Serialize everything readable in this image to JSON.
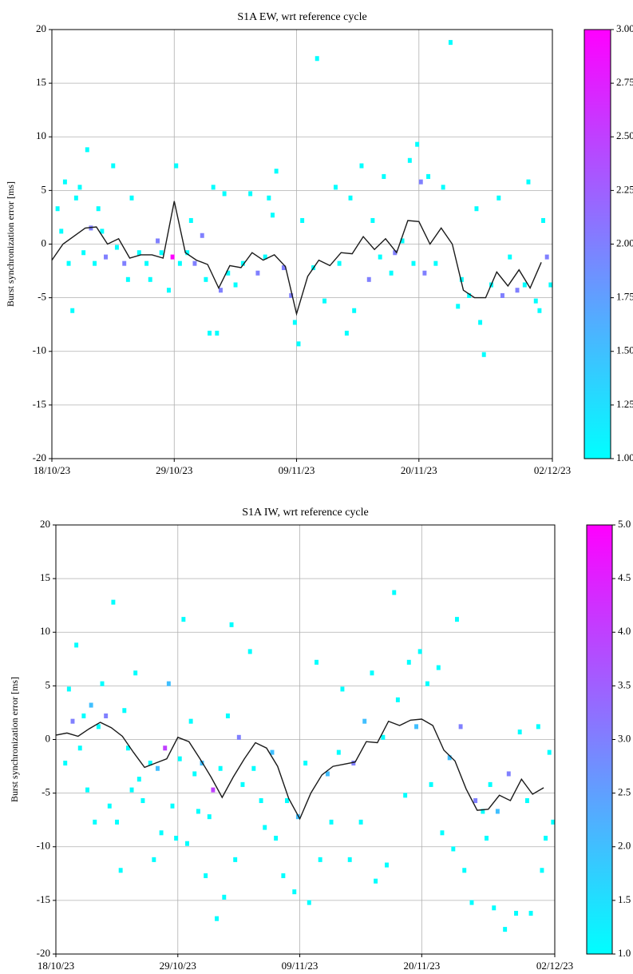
{
  "chart_data": [
    {
      "type": "histogram2d",
      "title": "S1A EW, wrt reference cycle",
      "ylabel": "Burst synchronization error [ms]",
      "xlim": [
        "2023-10-18",
        "2023-12-02"
      ],
      "xticks": [
        {
          "value": "2023-10-18",
          "label": "18/10/23"
        },
        {
          "value": "2023-10-29",
          "label": "29/10/23"
        },
        {
          "value": "2023-11-09",
          "label": "09/11/23"
        },
        {
          "value": "2023-11-20",
          "label": "20/11/23"
        },
        {
          "value": "2023-12-02",
          "label": "02/12/23"
        }
      ],
      "ylim": [
        -20,
        20
      ],
      "yticks": [
        -20,
        -15,
        -10,
        -5,
        0,
        5,
        10,
        15,
        20
      ],
      "grid": true,
      "colormap": [
        "#00ffff",
        "#ff00ff"
      ],
      "clim": [
        1,
        3
      ],
      "cticks": [
        {
          "value": 1,
          "label": "1.00"
        },
        {
          "value": 1.25,
          "label": "1.25"
        },
        {
          "value": 1.5,
          "label": "1.50"
        },
        {
          "value": 1.75,
          "label": "1.75"
        },
        {
          "value": 2,
          "label": "2.00"
        },
        {
          "value": 2.25,
          "label": "2.25"
        },
        {
          "value": 2.5,
          "label": "2.50"
        },
        {
          "value": 2.75,
          "label": "2.75"
        },
        {
          "value": 3,
          "label": "3.00"
        }
      ],
      "cells": {
        "x": [
          "2023-10-18T08",
          "2023-10-18T16",
          "2023-10-19T00",
          "2023-10-19T08",
          "2023-10-19T16",
          "2023-10-20T00",
          "2023-10-20T08",
          "2023-10-20T16",
          "2023-10-21T00",
          "2023-10-21T08",
          "2023-10-21T16",
          "2023-10-22T00",
          "2023-10-22T08",
          "2023-10-22T16",
          "2023-10-23T08",
          "2023-10-23T16",
          "2023-10-24T08",
          "2023-10-24T16",
          "2023-10-25T00",
          "2023-10-25T16",
          "2023-10-26T08",
          "2023-10-26T16",
          "2023-10-27T08",
          "2023-10-27T16",
          "2023-10-28T08",
          "2023-10-28T16",
          "2023-10-29T00",
          "2023-10-29T08",
          "2023-10-30T00",
          "2023-10-30T08",
          "2023-10-30T16",
          "2023-10-31T08",
          "2023-10-31T16",
          "2023-11-01T00",
          "2023-11-01T08",
          "2023-11-01T16",
          "2023-11-02T00",
          "2023-11-02T08",
          "2023-11-02T16",
          "2023-11-03T08",
          "2023-11-04T00",
          "2023-11-04T16",
          "2023-11-05T08",
          "2023-11-06T00",
          "2023-11-06T08",
          "2023-11-06T16",
          "2023-11-07T00",
          "2023-11-07T16",
          "2023-11-08T08",
          "2023-11-08T16",
          "2023-11-09T00",
          "2023-11-09T08",
          "2023-11-10T08",
          "2023-11-10T16",
          "2023-11-11T08",
          "2023-11-12T08",
          "2023-11-12T16",
          "2023-11-13T08",
          "2023-11-13T16",
          "2023-11-14T00",
          "2023-11-14T16",
          "2023-11-15T08",
          "2023-11-15T16",
          "2023-11-16T08",
          "2023-11-16T16",
          "2023-11-17T08",
          "2023-11-17T16",
          "2023-11-18T08",
          "2023-11-19T00",
          "2023-11-19T08",
          "2023-11-19T16",
          "2023-11-20T00",
          "2023-11-20T08",
          "2023-11-20T16",
          "2023-11-21T08",
          "2023-11-22T00",
          "2023-11-22T16",
          "2023-11-23T08",
          "2023-11-23T16",
          "2023-11-24T08",
          "2023-11-25T00",
          "2023-11-25T08",
          "2023-11-25T16",
          "2023-11-26T08",
          "2023-11-27T00",
          "2023-11-27T08",
          "2023-11-28T00",
          "2023-11-28T16",
          "2023-11-29T08",
          "2023-11-29T16",
          "2023-11-30T08",
          "2023-11-30T16",
          "2023-12-01T00",
          "2023-12-01T08",
          "2023-12-01T16"
        ],
        "y": [
          3.3,
          1.2,
          5.8,
          -1.8,
          -6.2,
          4.3,
          5.3,
          -0.8,
          8.8,
          1.5,
          -1.8,
          3.3,
          1.2,
          -1.2,
          7.3,
          -0.3,
          -1.8,
          -3.3,
          4.3,
          -0.8,
          -1.8,
          -3.3,
          0.3,
          -0.8,
          -4.3,
          -1.2,
          7.3,
          -1.8,
          -0.8,
          2.2,
          -1.8,
          0.8,
          -3.3,
          -8.3,
          5.3,
          -8.3,
          -4.3,
          4.7,
          -2.7,
          -3.8,
          -1.8,
          4.7,
          -2.7,
          -1.2,
          4.3,
          2.7,
          6.8,
          -2.2,
          -4.8,
          -7.3,
          -9.3,
          2.2,
          -2.2,
          17.3,
          -5.3,
          5.3,
          -1.8,
          -8.3,
          4.3,
          -6.2,
          7.3,
          -3.3,
          2.2,
          -1.2,
          6.3,
          -2.7,
          -0.8,
          0.3,
          7.8,
          -1.8,
          9.3,
          5.8,
          -2.7,
          6.3,
          -1.8,
          5.3,
          18.8,
          -5.8,
          -3.3,
          -4.8,
          3.3,
          -7.3,
          -10.3,
          -3.8,
          4.3,
          -4.8,
          -1.2,
          -4.3,
          -3.8,
          5.8,
          -5.3,
          -6.2,
          2.2,
          -1.2,
          -3.8
        ],
        "values": [
          1,
          1,
          1,
          1,
          1,
          1,
          1,
          1,
          1,
          2,
          1,
          1,
          1,
          2,
          1,
          1,
          2,
          1,
          1,
          1,
          1,
          1,
          2,
          1,
          1,
          3,
          1,
          1,
          1,
          1,
          2,
          2,
          1,
          1,
          1,
          1,
          2,
          1,
          1,
          1,
          1,
          1,
          2,
          1,
          1,
          1,
          1,
          2,
          2,
          1,
          1,
          1,
          1,
          1,
          1,
          1,
          1,
          1,
          1,
          1,
          1,
          2,
          1,
          1,
          1,
          1,
          2,
          1,
          1,
          1,
          1,
          2,
          2,
          1,
          1,
          1,
          1,
          1,
          1,
          1,
          1,
          1,
          1,
          1,
          1,
          2,
          1,
          2,
          1,
          1,
          1,
          1,
          1,
          2,
          1
        ]
      },
      "mean": {
        "color": "#1a1a1a",
        "x": [
          "2023-10-18",
          "2023-10-19",
          "2023-10-20",
          "2023-10-21",
          "2023-10-22",
          "2023-10-23",
          "2023-10-24",
          "2023-10-25",
          "2023-10-26",
          "2023-10-27",
          "2023-10-28",
          "2023-10-29",
          "2023-10-30",
          "2023-10-31",
          "2023-11-01",
          "2023-11-02",
          "2023-11-03",
          "2023-11-04",
          "2023-11-05",
          "2023-11-06",
          "2023-11-07",
          "2023-11-08",
          "2023-11-09",
          "2023-11-10",
          "2023-11-11",
          "2023-11-12",
          "2023-11-13",
          "2023-11-14",
          "2023-11-15",
          "2023-11-16",
          "2023-11-17",
          "2023-11-18",
          "2023-11-19",
          "2023-11-20",
          "2023-11-21",
          "2023-11-22",
          "2023-11-23",
          "2023-11-24",
          "2023-11-25",
          "2023-11-26",
          "2023-11-27",
          "2023-11-28",
          "2023-11-29",
          "2023-11-30",
          "2023-12-01"
        ],
        "values": [
          -1.5,
          0,
          0.75,
          1.5,
          1.6,
          0,
          0.5,
          -1.3,
          -1,
          -1,
          -1.3,
          4,
          -0.8,
          -1.5,
          -1.9,
          -4.1,
          -2,
          -2.2,
          -0.8,
          -1.5,
          -1,
          -2.1,
          -6.5,
          -3,
          -1.5,
          -2,
          -0.8,
          -0.9,
          0.7,
          -0.5,
          0.5,
          -0.8,
          2.2,
          2.1,
          0,
          1.5,
          0,
          -4.3,
          -5,
          -5,
          -2.6,
          -3.9,
          -2.4,
          -4.1,
          -1.7
        ]
      }
    },
    {
      "type": "histogram2d",
      "title": "S1A IW, wrt reference cycle",
      "ylabel": "Burst synchronization error [ms]",
      "xlim": [
        "2023-10-18",
        "2023-12-02"
      ],
      "xticks": [
        {
          "value": "2023-10-18",
          "label": "18/10/23"
        },
        {
          "value": "2023-10-29",
          "label": "29/10/23"
        },
        {
          "value": "2023-11-09",
          "label": "09/11/23"
        },
        {
          "value": "2023-11-20",
          "label": "20/11/23"
        },
        {
          "value": "2023-12-02",
          "label": "02/12/23"
        }
      ],
      "ylim": [
        -20,
        20
      ],
      "yticks": [
        -20,
        -15,
        -10,
        -5,
        0,
        5,
        10,
        15,
        20
      ],
      "grid": true,
      "colormap": [
        "#00ffff",
        "#ff00ff"
      ],
      "clim": [
        1,
        5
      ],
      "cticks": [
        {
          "value": 1,
          "label": "1.0"
        },
        {
          "value": 1.5,
          "label": "1.5"
        },
        {
          "value": 2,
          "label": "2.0"
        },
        {
          "value": 2.5,
          "label": "2.5"
        },
        {
          "value": 3,
          "label": "3.0"
        },
        {
          "value": 3.5,
          "label": "3.5"
        },
        {
          "value": 4,
          "label": "4.0"
        },
        {
          "value": 4.5,
          "label": "4.5"
        },
        {
          "value": 5,
          "label": "5.0"
        }
      ],
      "cells": {
        "x": [
          "2023-10-18T16",
          "2023-10-19T00",
          "2023-10-19T08",
          "2023-10-19T16",
          "2023-10-20T00",
          "2023-10-20T08",
          "2023-10-20T16",
          "2023-10-21T00",
          "2023-10-21T08",
          "2023-10-21T16",
          "2023-10-22T00",
          "2023-10-22T08",
          "2023-10-22T16",
          "2023-10-23T00",
          "2023-10-23T08",
          "2023-10-23T16",
          "2023-10-24T00",
          "2023-10-24T08",
          "2023-10-24T16",
          "2023-10-25T00",
          "2023-10-25T08",
          "2023-10-25T16",
          "2023-10-26T08",
          "2023-10-26T16",
          "2023-10-27T00",
          "2023-10-27T08",
          "2023-10-27T16",
          "2023-10-28T00",
          "2023-10-28T08",
          "2023-10-28T16",
          "2023-10-29T00",
          "2023-10-29T08",
          "2023-10-29T16",
          "2023-10-30T00",
          "2023-10-30T08",
          "2023-10-30T16",
          "2023-10-31T00",
          "2023-10-31T08",
          "2023-10-31T16",
          "2023-11-01T00",
          "2023-11-01T08",
          "2023-11-01T16",
          "2023-11-02T00",
          "2023-11-02T08",
          "2023-11-02T16",
          "2023-11-03T00",
          "2023-11-03T08",
          "2023-11-03T16",
          "2023-11-04T08",
          "2023-11-04T16",
          "2023-11-05T08",
          "2023-11-05T16",
          "2023-11-06T08",
          "2023-11-06T16",
          "2023-11-07T08",
          "2023-11-07T16",
          "2023-11-08T08",
          "2023-11-08T16",
          "2023-11-09T08",
          "2023-11-09T16",
          "2023-11-10T08",
          "2023-11-10T16",
          "2023-11-11T08",
          "2023-11-11T16",
          "2023-11-12T08",
          "2023-11-12T16",
          "2023-11-13T08",
          "2023-11-13T16",
          "2023-11-14T08",
          "2023-11-14T16",
          "2023-11-15T08",
          "2023-11-15T16",
          "2023-11-16T08",
          "2023-11-16T16",
          "2023-11-17T08",
          "2023-11-17T16",
          "2023-11-18T08",
          "2023-11-18T16",
          "2023-11-19T08",
          "2023-11-19T16",
          "2023-11-20T08",
          "2023-11-20T16",
          "2023-11-21T08",
          "2023-11-21T16",
          "2023-11-22T08",
          "2023-11-22T16",
          "2023-11-23T00",
          "2023-11-23T08",
          "2023-11-23T16",
          "2023-11-24T08",
          "2023-11-24T16",
          "2023-11-25T08",
          "2023-11-25T16",
          "2023-11-26T00",
          "2023-11-26T08",
          "2023-11-26T16",
          "2023-11-27T08",
          "2023-11-27T16",
          "2023-11-28T08",
          "2023-11-28T16",
          "2023-11-29T08",
          "2023-11-29T16",
          "2023-11-30T08",
          "2023-11-30T16",
          "2023-12-01T00",
          "2023-12-01T08",
          "2023-12-01T16"
        ],
        "y": [
          -2.2,
          4.7,
          1.7,
          8.8,
          -0.8,
          2.2,
          -4.7,
          3.2,
          -7.7,
          1.2,
          5.2,
          2.2,
          -6.2,
          12.8,
          -7.7,
          -12.2,
          2.7,
          -0.8,
          -4.7,
          6.2,
          -3.7,
          -5.7,
          -2.2,
          -11.2,
          -2.7,
          -8.7,
          -0.8,
          5.2,
          -6.2,
          -9.2,
          -1.8,
          11.2,
          -9.7,
          1.7,
          -3.2,
          -6.7,
          -2.2,
          -12.7,
          -7.2,
          -4.7,
          -16.7,
          -2.7,
          -14.7,
          2.2,
          10.7,
          -11.2,
          0.2,
          -4.2,
          8.2,
          -2.7,
          -5.7,
          -8.2,
          -1.2,
          -9.2,
          -12.7,
          -5.7,
          -14.2,
          -7.2,
          -2.2,
          -15.2,
          7.2,
          -11.2,
          -3.2,
          -7.7,
          -1.2,
          4.7,
          -11.2,
          -2.2,
          -7.7,
          1.7,
          6.2,
          -13.2,
          0.2,
          -11.7,
          13.7,
          3.7,
          -5.2,
          7.2,
          1.2,
          8.2,
          5.2,
          -4.2,
          6.7,
          -8.7,
          -1.7,
          -10.2,
          11.2,
          1.2,
          -12.2,
          -15.2,
          -5.7,
          -6.7,
          -9.2,
          -4.2,
          -15.7,
          -6.7,
          -17.7,
          -3.2,
          -16.2,
          0.7,
          -5.7,
          -16.2,
          1.2,
          -12.2,
          -9.2,
          -1.2,
          -7.7
        ],
        "values": [
          1,
          1,
          3,
          1,
          1,
          1,
          1,
          2,
          1,
          1,
          1,
          3,
          1,
          1,
          1,
          1,
          1,
          1,
          1,
          1,
          1,
          1,
          1,
          1,
          2,
          1,
          4,
          2,
          1,
          1,
          1,
          1,
          1,
          1,
          1,
          1,
          2,
          1,
          1,
          4,
          1,
          1,
          1,
          1,
          1,
          1,
          3,
          1,
          1,
          1,
          1,
          1,
          2,
          1,
          1,
          1,
          1,
          2,
          1,
          1,
          1,
          1,
          2,
          1,
          1,
          1,
          1,
          3,
          1,
          2,
          1,
          1,
          1,
          1,
          1,
          1,
          1,
          1,
          2,
          1,
          1,
          1,
          1,
          1,
          2,
          1,
          1,
          3,
          1,
          1,
          3,
          1,
          1,
          1,
          1,
          2,
          1,
          3,
          1,
          1,
          1,
          1,
          1,
          1,
          1,
          1,
          1
        ]
      },
      "mean": {
        "color": "#1a1a1a",
        "x": [
          "2023-10-18",
          "2023-10-19",
          "2023-10-20",
          "2023-10-21",
          "2023-10-22",
          "2023-10-23",
          "2023-10-24",
          "2023-10-25",
          "2023-10-26",
          "2023-10-27",
          "2023-10-28",
          "2023-10-29",
          "2023-10-30",
          "2023-10-31",
          "2023-11-01",
          "2023-11-02",
          "2023-11-03",
          "2023-11-04",
          "2023-11-05",
          "2023-11-06",
          "2023-11-07",
          "2023-11-08",
          "2023-11-09",
          "2023-11-10",
          "2023-11-11",
          "2023-11-12",
          "2023-11-13",
          "2023-11-14",
          "2023-11-15",
          "2023-11-16",
          "2023-11-17",
          "2023-11-18",
          "2023-11-19",
          "2023-11-20",
          "2023-11-21",
          "2023-11-22",
          "2023-11-23",
          "2023-11-24",
          "2023-11-25",
          "2023-11-26",
          "2023-11-27",
          "2023-11-28",
          "2023-11-29",
          "2023-11-30",
          "2023-12-01"
        ],
        "values": [
          0.4,
          0.6,
          0.3,
          1,
          1.6,
          1.1,
          0.3,
          -1.2,
          -2.6,
          -2.2,
          -1.8,
          0.2,
          -0.2,
          -1.8,
          -3.5,
          -5.4,
          -3.5,
          -1.8,
          -0.3,
          -0.8,
          -2.5,
          -5.5,
          -7.4,
          -5,
          -3.3,
          -2.5,
          -2.3,
          -2.1,
          -0.2,
          -0.3,
          1.7,
          1.3,
          1.8,
          1.9,
          1.3,
          -1,
          -2,
          -4.6,
          -6.6,
          -6.5,
          -5.2,
          -5.7,
          -3.7,
          -5.1,
          -4.5
        ]
      }
    }
  ]
}
